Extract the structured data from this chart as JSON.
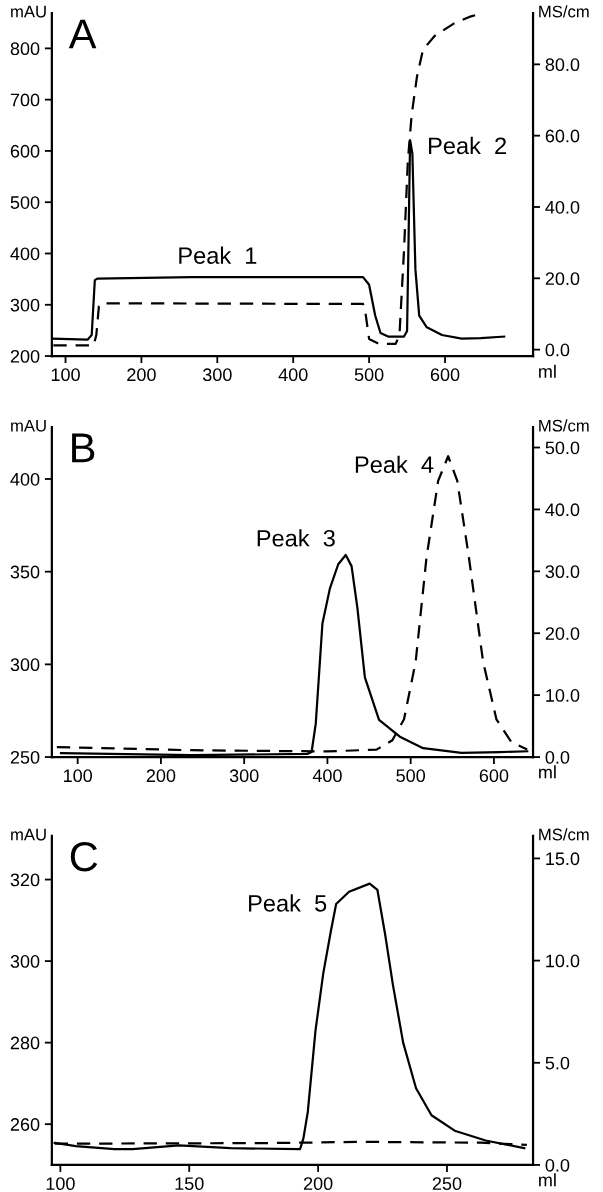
{
  "chart_data": [
    {
      "type": "line",
      "title": "A",
      "xlabel": "ml",
      "ylabel": "mAU",
      "y2label": "MS/cm",
      "xlim": [
        82,
        716
      ],
      "xticks": [
        100,
        200,
        300,
        400,
        500,
        600
      ],
      "ylim": [
        200,
        869
      ],
      "yticks": [
        200,
        300,
        400,
        500,
        600,
        700,
        800
      ],
      "y2lim": [
        -1.8,
        94.4
      ],
      "y2ticks": [
        {
          "value": 0,
          "label": "0.0"
        },
        {
          "value": 20,
          "label": "20.0"
        },
        {
          "value": 40,
          "label": "40.0"
        },
        {
          "value": 60,
          "label": "60.0"
        },
        {
          "value": 80,
          "label": "80.0"
        }
      ],
      "legend": false,
      "grid": false,
      "series": [
        {
          "color": "#000000",
          "line_style": "solid",
          "x": [
            82,
            129,
            134.5,
            138.6,
            142,
            266,
            492,
            500,
            508,
            515,
            525,
            546,
            550,
            552,
            554,
            557,
            561,
            566,
            576,
            596,
            622,
            647,
            678
          ],
          "values": [
            234,
            232,
            241,
            348,
            351,
            354,
            354,
            339,
            279,
            245,
            238,
            238,
            249,
            429,
            621,
            595,
            369,
            279,
            256,
            241,
            234,
            235,
            238
          ]
        },
        {
          "color": "#000000",
          "line_style": "dashed",
          "axis": "y2",
          "x": [
            84,
            137,
            140.6,
            144,
            147,
            492,
            495,
            500,
            513,
            535,
            540,
            546,
            551,
            556,
            563,
            571,
            586,
            612,
            632,
            650
          ],
          "values": [
            1.2,
            1.2,
            4.1,
            12.2,
            13.0,
            12.8,
            10.6,
            3.0,
            1.6,
            1.6,
            4.1,
            27.9,
            52.8,
            65.7,
            76.5,
            84.1,
            87.9,
            91.5,
            93.3,
            94.4
          ]
        }
      ],
      "annotations": [
        "Peak  1",
        "Peak  2"
      ]
    },
    {
      "type": "line",
      "title": "B",
      "xlabel": "ml",
      "ylabel": "mAU",
      "y2label": "MS/cm",
      "xlim": [
        69,
        647
      ],
      "xticks": [
        100,
        200,
        300,
        400,
        500,
        600
      ],
      "ylim": [
        250,
        428
      ],
      "yticks": [
        250,
        300,
        350,
        400
      ],
      "y2lim": [
        0,
        53.3
      ],
      "y2ticks": [
        {
          "value": 0,
          "label": "0.0"
        },
        {
          "value": 10,
          "label": "10.0"
        },
        {
          "value": 20,
          "label": "20.0"
        },
        {
          "value": 30,
          "label": "30.0"
        },
        {
          "value": 40,
          "label": "40.0"
        },
        {
          "value": 50,
          "label": "50.0"
        }
      ],
      "legend": false,
      "grid": false,
      "series": [
        {
          "color": "#000000",
          "line_style": "solid",
          "x": [
            80,
            237,
            376,
            381,
            386,
            394,
            403,
            413,
            422,
            429,
            436,
            445,
            462,
            487,
            515,
            561,
            607,
            640
          ],
          "values": [
            252.1,
            251,
            251.7,
            252.7,
            268,
            322,
            341,
            354,
            359,
            353,
            330.5,
            293,
            270,
            261,
            254.8,
            252.3,
            252.7,
            253.1
          ]
        },
        {
          "color": "#000000",
          "line_style": "dashed",
          "axis": "y2",
          "x": [
            75,
            237,
            399,
            459,
            478,
            492,
            506,
            519,
            533,
            545,
            556,
            570,
            587,
            603,
            621,
            640
          ],
          "values": [
            1.6,
            1.1,
            0.9,
            1.2,
            2.7,
            6.1,
            15.4,
            32.2,
            44.6,
            48.6,
            44.6,
            32.2,
            15.4,
            6.1,
            2.4,
            1.2
          ]
        }
      ],
      "annotations": [
        "Peak  3",
        "Peak  4"
      ]
    },
    {
      "type": "line",
      "title": "C",
      "xlabel": "ml",
      "ylabel": "mAU",
      "y2label": "MS/cm",
      "xlim": [
        96.7,
        283.4
      ],
      "xticks": [
        100,
        150,
        200,
        250
      ],
      "ylim": [
        250,
        330.7
      ],
      "yticks": [
        260,
        280,
        300,
        320
      ],
      "y2lim": [
        0,
        16.1
      ],
      "y2ticks": [
        {
          "value": 0,
          "label": "0.0"
        },
        {
          "value": 5,
          "label": "5.0"
        },
        {
          "value": 10,
          "label": "10.0"
        },
        {
          "value": 15,
          "label": "15.0"
        }
      ],
      "legend": false,
      "grid": false,
      "series": [
        {
          "color": "#000000",
          "line_style": "solid",
          "x": [
            97.8,
            106,
            121,
            128,
            146,
            166,
            193,
            194.3,
            196,
            199,
            202,
            205,
            207,
            212,
            220,
            223,
            226,
            229,
            233,
            238,
            244,
            253,
            265,
            280
          ],
          "values": [
            255.4,
            254.6,
            253.9,
            253.9,
            254.8,
            254.1,
            253.9,
            256.5,
            263,
            283,
            297,
            307.5,
            314,
            317,
            319,
            317.5,
            306.6,
            294.3,
            280,
            268.8,
            262.2,
            258.4,
            256,
            254.1
          ]
        },
        {
          "color": "#000000",
          "line_style": "dashed",
          "axis": "y2",
          "x": [
            97.8,
            181,
            218,
            263,
            281
          ],
          "values": [
            1.04,
            1.07,
            1.13,
            1.09,
            0.98
          ]
        }
      ],
      "annotations": [
        "Peak  5"
      ]
    }
  ]
}
